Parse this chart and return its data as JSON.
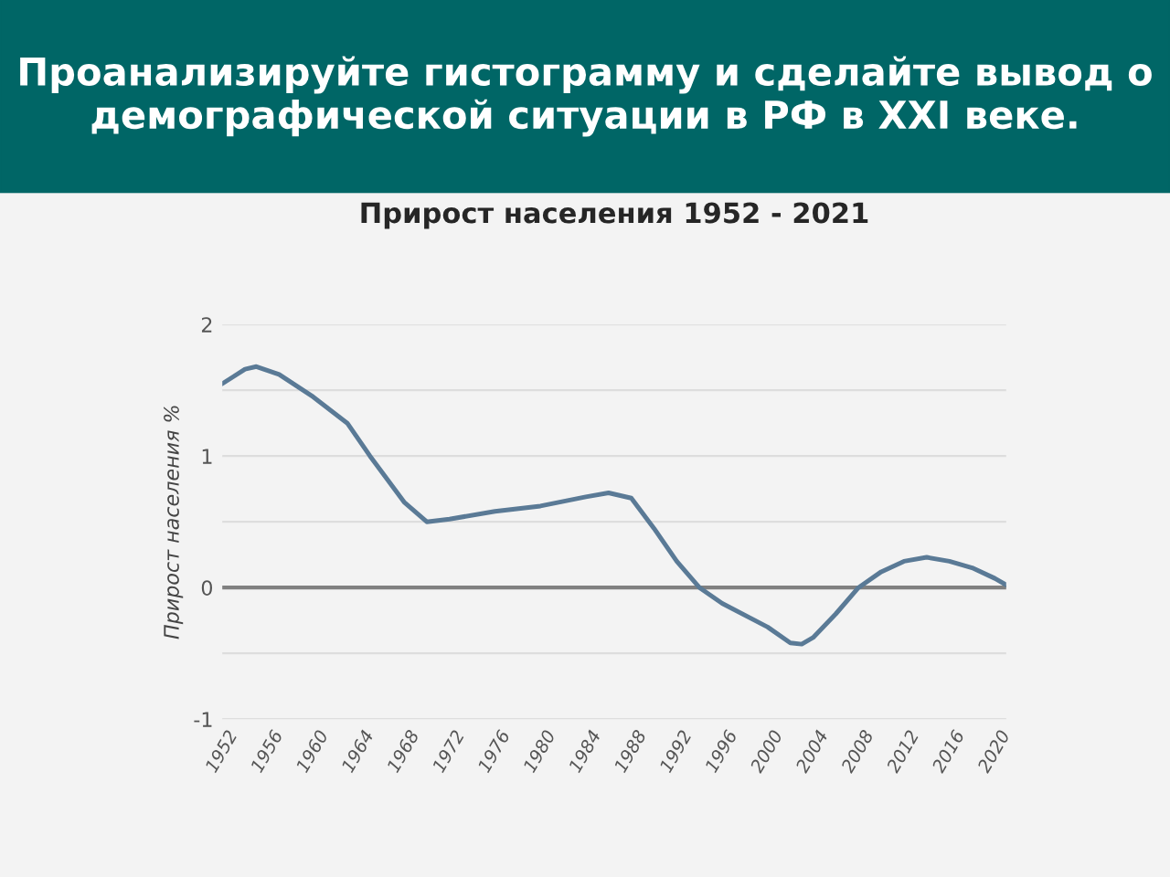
{
  "chart_data": {
    "type": "line",
    "title": "Проанализируйте гистограмму и сделайте вывод о демографической ситуации в РФ в XXI веке.",
    "subtitle": "Прирост населения 1952 - 2021",
    "ylabel": "Прирост населения %",
    "x": [
      1952,
      1954,
      1955,
      1957,
      1960,
      1963,
      1965,
      1968,
      1970,
      1972,
      1976,
      1980,
      1984,
      1986,
      1988,
      1990,
      1992,
      1994,
      1996,
      2000,
      2002,
      2003,
      2004,
      2006,
      2008,
      2010,
      2012,
      2014,
      2016,
      2018,
      2020,
      2021
    ],
    "series": [
      {
        "color": "#5a7a96",
        "values": [
          1.55,
          1.66,
          1.68,
          1.62,
          1.45,
          1.25,
          1.0,
          0.65,
          0.5,
          0.52,
          0.58,
          0.62,
          0.69,
          0.72,
          0.68,
          0.45,
          0.2,
          0.0,
          -0.12,
          -0.3,
          -0.42,
          -0.43,
          -0.38,
          -0.2,
          0.0,
          0.12,
          0.2,
          0.23,
          0.2,
          0.15,
          0.07,
          0.02
        ]
      }
    ],
    "xlim": [
      1952,
      2021
    ],
    "xticks": [
      1952,
      1956,
      1960,
      1964,
      1968,
      1972,
      1976,
      1980,
      1984,
      1988,
      1992,
      1996,
      2000,
      2004,
      2008,
      2012,
      2016,
      2020
    ],
    "ylim": [
      -1,
      2
    ],
    "yticks": [
      -1,
      {
        "value": -0.5,
        "label": null
      },
      0,
      {
        "value": 0.5,
        "label": null
      },
      1,
      {
        "value": 1.5,
        "label": null
      },
      2
    ],
    "ref_lines": [
      {
        "axis": "y",
        "value": 0,
        "color": "#808080"
      }
    ],
    "grid": "y",
    "legend": false,
    "marker": "none",
    "line_style": "solid"
  }
}
